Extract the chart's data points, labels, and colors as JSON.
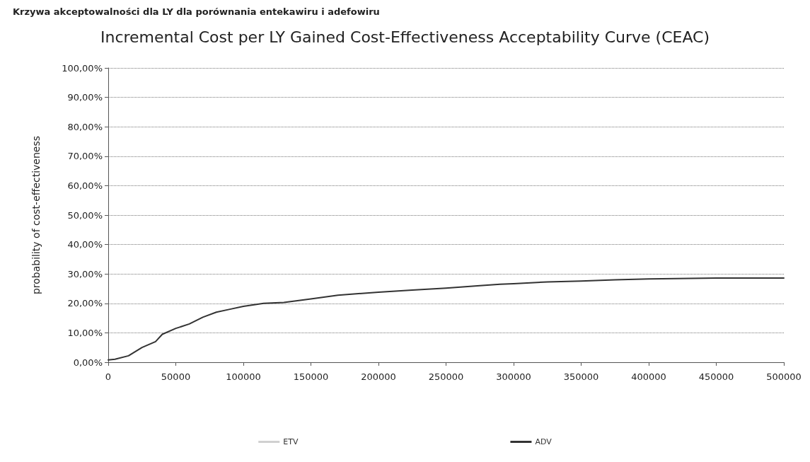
{
  "chart_data": {
    "type": "line",
    "title": "Incremental Cost per LY Gained Cost-Effectiveness Acceptability Curve (CEAC)",
    "ylabel": "probability of cost-effectiveness",
    "annotations": [
      "Krzywa akceptowalności dla LY dla porównania entekawiru i adefowiru"
    ],
    "x": [
      0,
      5000,
      15000,
      25000,
      35000,
      40000,
      50000,
      60000,
      70000,
      80000,
      90000,
      100000,
      115000,
      130000,
      150000,
      170000,
      200000,
      225000,
      250000,
      275000,
      290000,
      300000,
      325000,
      350000,
      375000,
      400000,
      450000,
      500000
    ],
    "series": [
      {
        "name": "ETV",
        "color": "#d0d0d0",
        "values": [
          null,
          null,
          null,
          null,
          null,
          null,
          null,
          null,
          null,
          null,
          null,
          null,
          null,
          null,
          null,
          null,
          null,
          null,
          null,
          null,
          null,
          null,
          null,
          null,
          null,
          null,
          null,
          null
        ]
      },
      {
        "name": "ADV",
        "color": "#333333",
        "values": [
          0.8,
          1.0,
          2.2,
          5,
          7,
          9.5,
          11.5,
          13,
          15.3,
          17,
          18,
          19,
          20,
          20.3,
          21.5,
          22.8,
          23.8,
          24.5,
          25.2,
          26,
          26.5,
          26.7,
          27.3,
          27.6,
          28,
          28.3,
          28.6,
          28.6
        ]
      }
    ],
    "xlim": [
      0,
      500000
    ],
    "xticks": [
      0,
      50000,
      100000,
      150000,
      200000,
      250000,
      300000,
      350000,
      400000,
      450000,
      500000
    ],
    "ylim": [
      0,
      100
    ],
    "yticks": [
      {
        "value": 0,
        "label": "0,00%"
      },
      {
        "value": 10,
        "label": "10,00%"
      },
      {
        "value": 20,
        "label": "20,00%"
      },
      {
        "value": 30,
        "label": "30,00%"
      },
      {
        "value": 40,
        "label": "40,00%"
      },
      {
        "value": 50,
        "label": "50,00%"
      },
      {
        "value": 60,
        "label": "60,00%"
      },
      {
        "value": 70,
        "label": "70,00%"
      },
      {
        "value": 80,
        "label": "80,00%"
      },
      {
        "value": 90,
        "label": "90,00%"
      },
      {
        "value": 100,
        "label": "100,00%"
      }
    ],
    "grid": "y",
    "legend": "bottom",
    "marker": "none",
    "line_style": "solid"
  }
}
